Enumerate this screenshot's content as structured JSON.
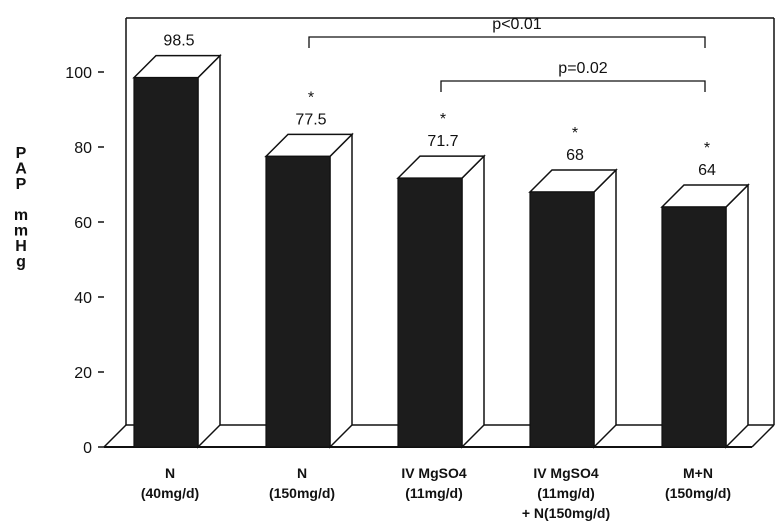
{
  "chart_data": {
    "type": "bar",
    "ylabel_lines": [
      "P",
      "A",
      "P",
      "",
      "m",
      "m",
      "H",
      "g"
    ],
    "ylim": [
      0,
      100
    ],
    "yticks": [
      0,
      20,
      40,
      60,
      80,
      100
    ],
    "categories": [
      {
        "lines": [
          "N",
          "(40mg/d)"
        ]
      },
      {
        "lines": [
          "N",
          "(150mg/d)"
        ]
      },
      {
        "lines": [
          "IV MgSO4",
          "(11mg/d)"
        ]
      },
      {
        "lines": [
          "IV MgSO4",
          "(11mg/d)",
          "+ N(150mg/d)"
        ]
      },
      {
        "lines": [
          "M+N",
          "(150mg/d)"
        ]
      }
    ],
    "values": [
      98.5,
      77.5,
      71.7,
      68,
      64
    ],
    "value_labels": [
      "98.5",
      "77.5",
      "71.7",
      "68",
      "64"
    ],
    "asterisk": [
      false,
      true,
      true,
      true,
      true
    ],
    "asterisk_symbol": "*",
    "significance": [
      {
        "from": 1,
        "to": 4,
        "label": "p<0.01"
      },
      {
        "from": 2,
        "to": 4,
        "label": "p=0.02"
      }
    ],
    "colors": {
      "bar": "#1c1c1c",
      "frame": "#111111"
    }
  }
}
